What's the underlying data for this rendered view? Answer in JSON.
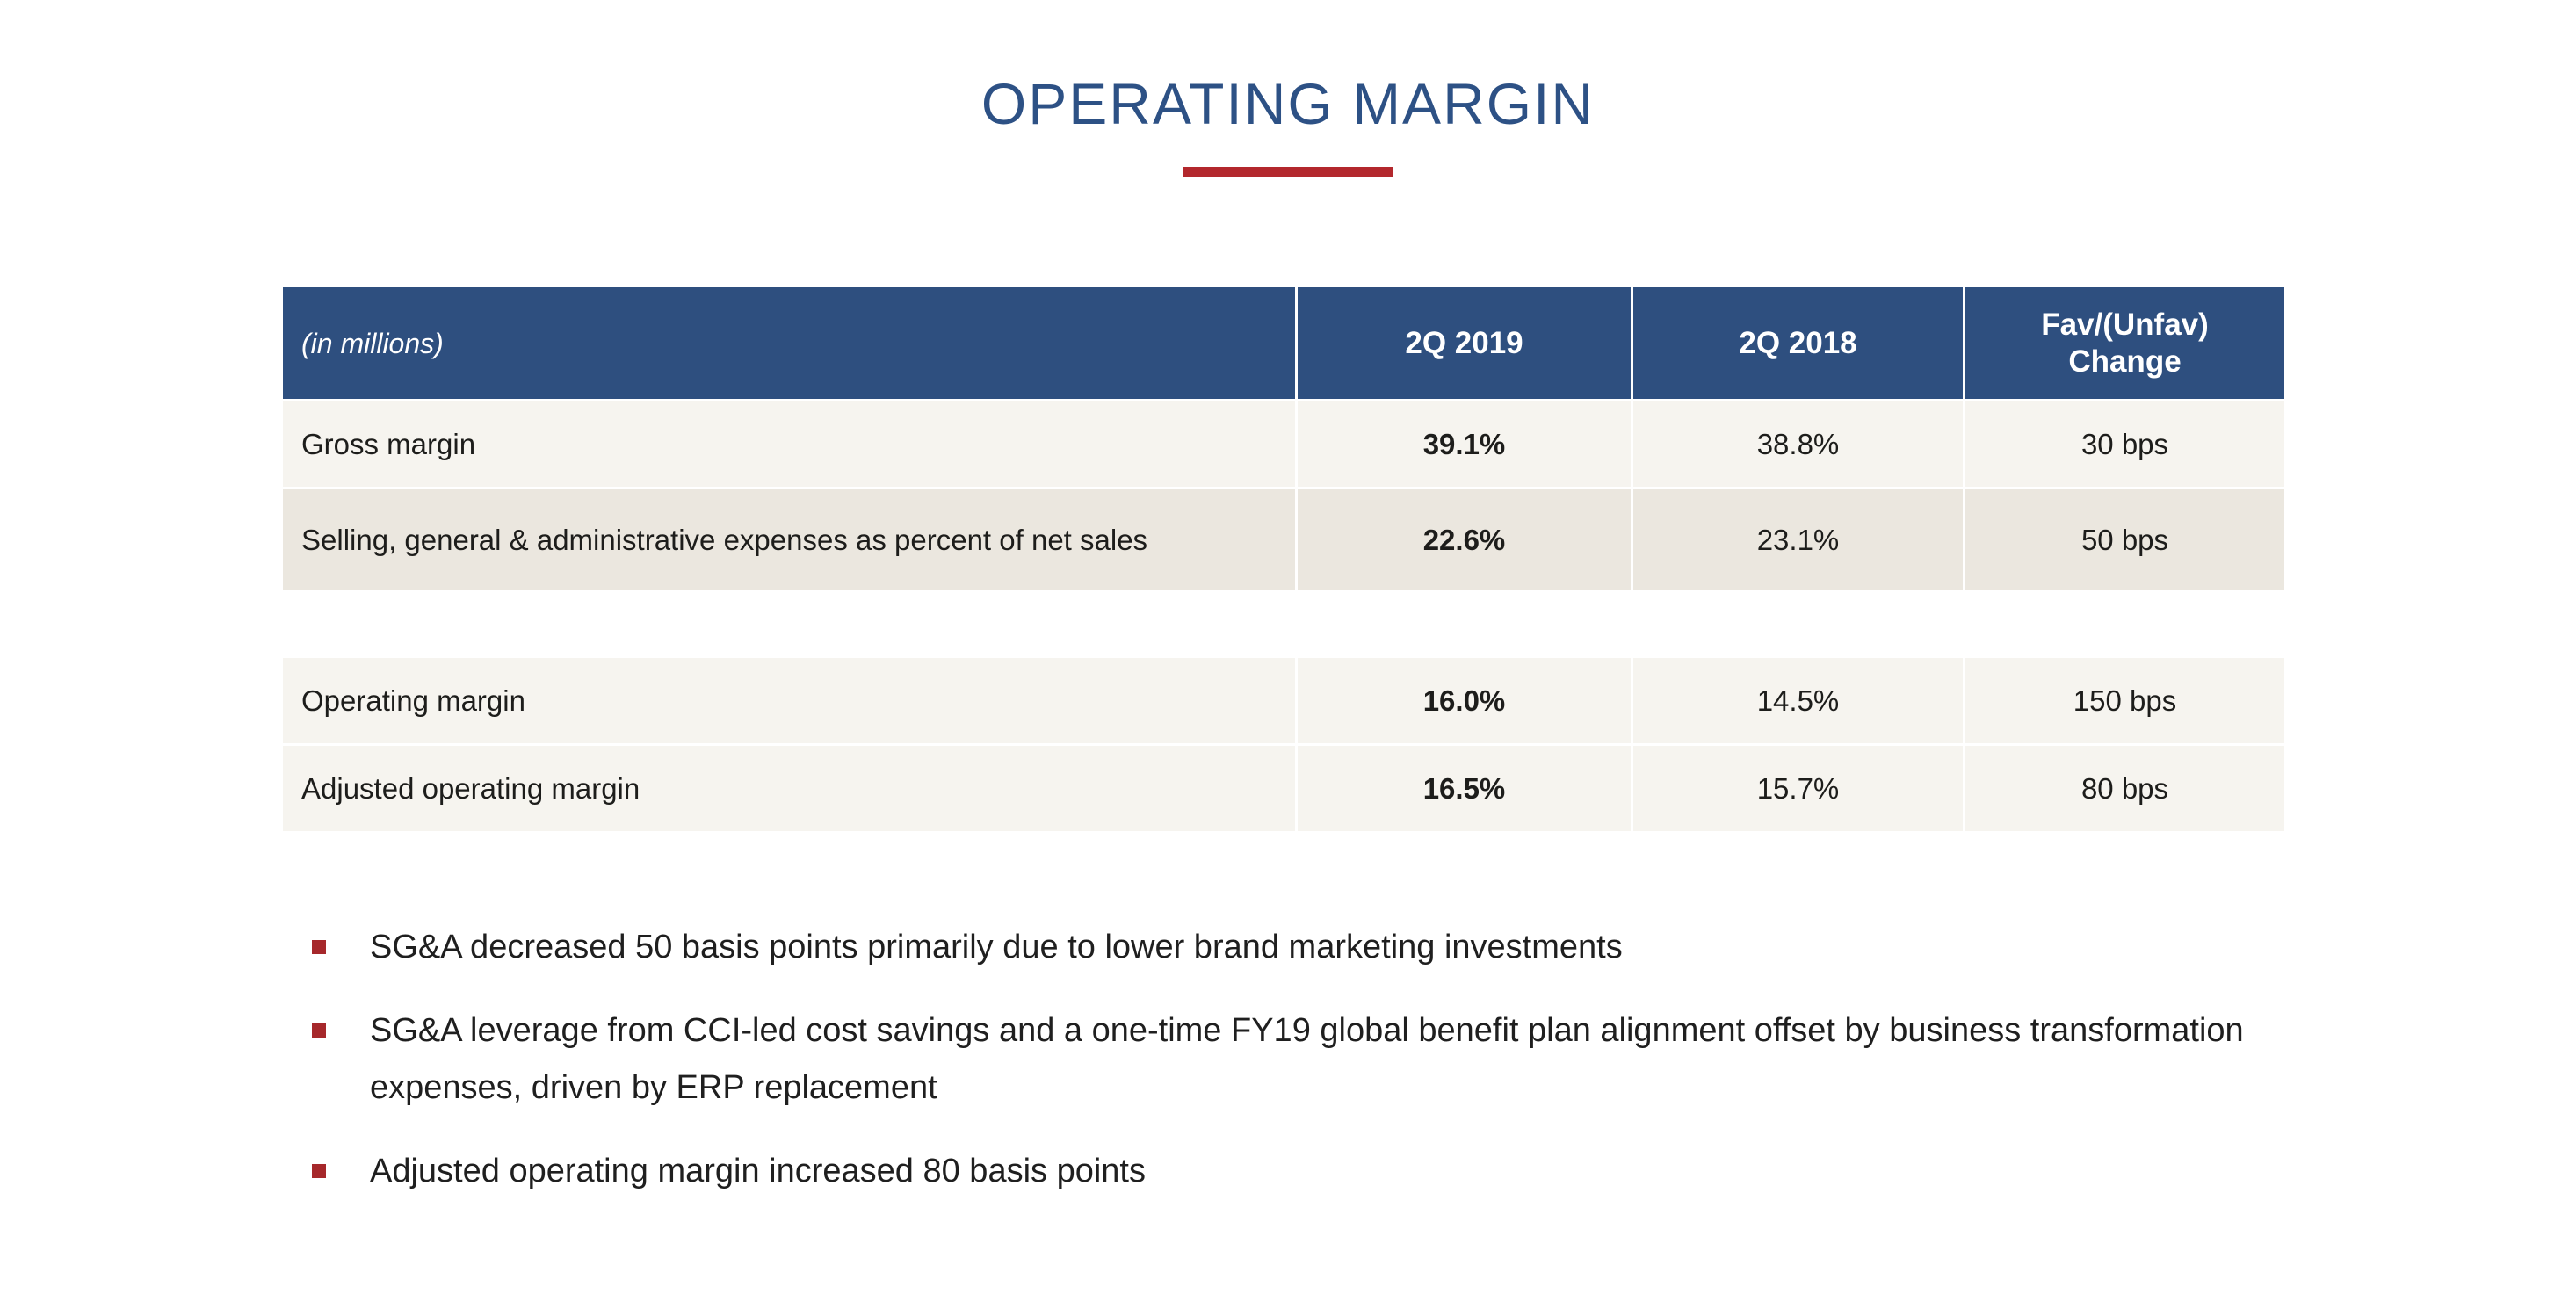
{
  "page": {
    "title": "OPERATING MARGIN"
  },
  "table": {
    "headers": [
      "(in millions)",
      "2Q 2019",
      "2Q 2018",
      "Fav/(Unfav)\nChange"
    ],
    "rows1": [
      {
        "label": "Gross margin",
        "q2019": "39.1%",
        "q2018": "38.8%",
        "change": "30 bps"
      },
      {
        "label": "Selling, general & administrative expenses as percent of net sales",
        "q2019": "22.6%",
        "q2018": "23.1%",
        "change": "50 bps"
      }
    ],
    "rows2": [
      {
        "label": "Operating margin",
        "q2019": "16.0%",
        "q2018": "14.5%",
        "change": "150 bps"
      },
      {
        "label": "Adjusted operating margin",
        "q2019": "16.5%",
        "q2018": "15.7%",
        "change": "80 bps"
      }
    ]
  },
  "bullets": [
    "SG&A decreased 50 basis points primarily due to lower brand marketing investments",
    "SG&A leverage from CCI-led cost savings and a one-time FY19 global benefit plan alignment offset by business transformation expenses, driven by ERP replacement",
    "Adjusted operating margin increased 80 basis points"
  ],
  "colors": {
    "title_blue": "#2d5185",
    "header_blue": "#2e4f7f",
    "accent_red": "#b3282d",
    "bullet_red": "#a6282b",
    "row_light": "#f6f4ef",
    "row_dark": "#ebe7df"
  }
}
